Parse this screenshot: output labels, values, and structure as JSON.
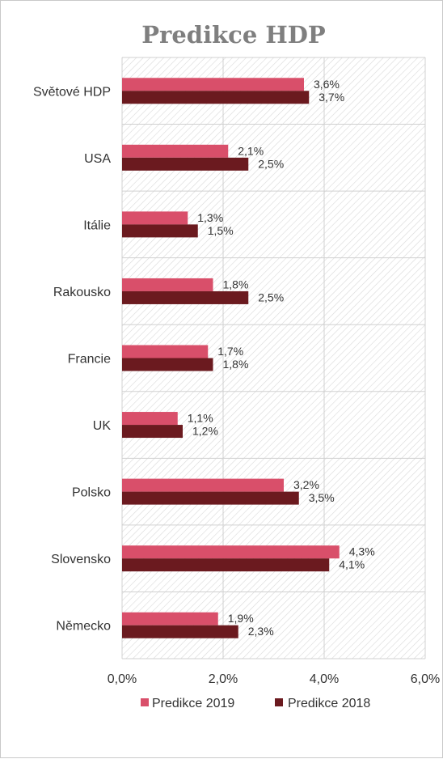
{
  "chart_data": {
    "type": "bar",
    "orientation": "horizontal",
    "title": "Predikce HDP",
    "categories": [
      "Světové HDP",
      "USA",
      "Itálie",
      "Rakousko",
      "Francie",
      "UK",
      "Polsko",
      "Slovensko",
      "Německo"
    ],
    "series": [
      {
        "name": "Predikce 2019",
        "values": [
          3.6,
          2.1,
          1.3,
          1.8,
          1.7,
          1.1,
          3.2,
          4.3,
          1.9
        ],
        "labels": [
          "3,6%",
          "2,1%",
          "1,3%",
          "1,8%",
          "1,7%",
          "1,1%",
          "3,2%",
          "4,3%",
          "1,9%"
        ],
        "color": "#d94f6a"
      },
      {
        "name": "Predikce 2018",
        "values": [
          3.7,
          2.5,
          1.5,
          2.5,
          1.8,
          1.2,
          3.5,
          4.1,
          2.3
        ],
        "labels": [
          "3,7%",
          "2,5%",
          "1,5%",
          "2,5%",
          "1,8%",
          "1,2%",
          "3,5%",
          "4,1%",
          "2,3%"
        ],
        "color": "#6b1a1f"
      }
    ],
    "xlim": [
      0,
      6
    ],
    "xticks": [
      0,
      2,
      4,
      6
    ],
    "xtick_labels": [
      "0,0%",
      "2,0%",
      "4,0%",
      "6,0%"
    ],
    "grid": true,
    "legend": "bottom"
  }
}
